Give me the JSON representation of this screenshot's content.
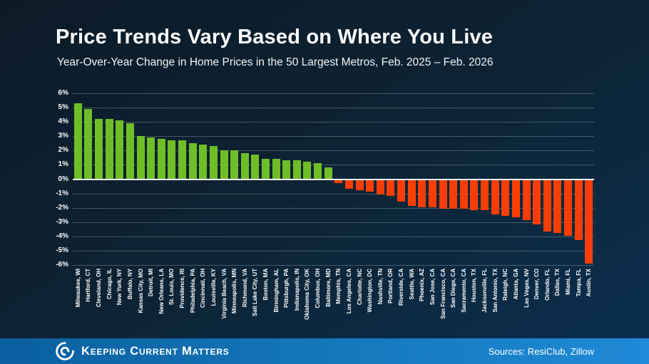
{
  "slide": {
    "title": "Price Trends Vary Based on Where You Live",
    "subtitle": "Year-Over-Year Change in Home Prices in the 50 Largest Metros, Feb. 2025 – Feb. 2026"
  },
  "chart_data": {
    "type": "bar",
    "title": "Year-Over-Year Change in Home Prices in the 50 Largest Metros, Feb. 2025 – Feb. 2026",
    "categories": [
      "Milwaukee, WI",
      "Hartford, CT",
      "Cleveland, OH",
      "Chicago, IL",
      "New York, NY",
      "Buffalo, NY",
      "Kansas City, MO",
      "Detroit, MI",
      "New Orleans, LA",
      "St. Louis, MO",
      "Providence, RI",
      "Philadelphia, PA",
      "Cincinnati, OH",
      "Louisville, KY",
      "Virginia Beach, VA",
      "Minneapolis, MN",
      "Richmond, VA",
      "Salt Lake City, UT",
      "Boston, MA",
      "Birmingham, AL",
      "Pittsburgh, PA",
      "Indianapolis, IN",
      "Oklahoma City, OK",
      "Columbus, OH",
      "Baltimore, MD",
      "Memphis, TN",
      "Los Angeles, CA",
      "Charlotte, NC",
      "Washington, DC",
      "Nashville, TN",
      "Portland, OR",
      "Riverside, CA",
      "Seattle, WA",
      "Phoenix, AZ",
      "San Jose, CA",
      "San Francisco, CA",
      "San Diego, CA",
      "Sacramento, CA",
      "Houston, TX",
      "Jacksonville, FL",
      "San Antonio, TX",
      "Raleigh, NC",
      "Atlanta, GA",
      "Las Vegas, NV",
      "Denver, CO",
      "Orlando, FL",
      "Dallas, TX",
      "Miami, FL",
      "Tampa, FL",
      "Austin, TX"
    ],
    "values": [
      5.3,
      4.9,
      4.2,
      4.2,
      4.1,
      3.9,
      3.0,
      2.9,
      2.8,
      2.7,
      2.7,
      2.5,
      2.4,
      2.3,
      2.0,
      2.0,
      1.8,
      1.7,
      1.4,
      1.4,
      1.3,
      1.3,
      1.2,
      1.1,
      0.8,
      -0.2,
      -0.6,
      -0.7,
      -0.8,
      -1.0,
      -1.1,
      -1.5,
      -1.8,
      -1.9,
      -1.9,
      -2.0,
      -2.0,
      -2.0,
      -2.1,
      -2.1,
      -2.4,
      -2.5,
      -2.6,
      -2.8,
      -3.1,
      -3.6,
      -3.7,
      -3.9,
      -4.2,
      -5.8
    ],
    "xlabel": "",
    "ylabel": "",
    "ylim": [
      -6,
      6
    ],
    "yticks": [
      6,
      5,
      4,
      3,
      2,
      1,
      0,
      -1,
      -2,
      -3,
      -4,
      -5,
      -6
    ],
    "ytick_format": "percent",
    "grid": true,
    "legend_position": "none",
    "positive_color": "#6fbe27",
    "negative_color": "#f93e04"
  },
  "footer": {
    "brand": "Keeping Current Matters",
    "logo_icon": "kcm-swirl-icon",
    "sources": "Sources: ResiClub, Zillow"
  }
}
